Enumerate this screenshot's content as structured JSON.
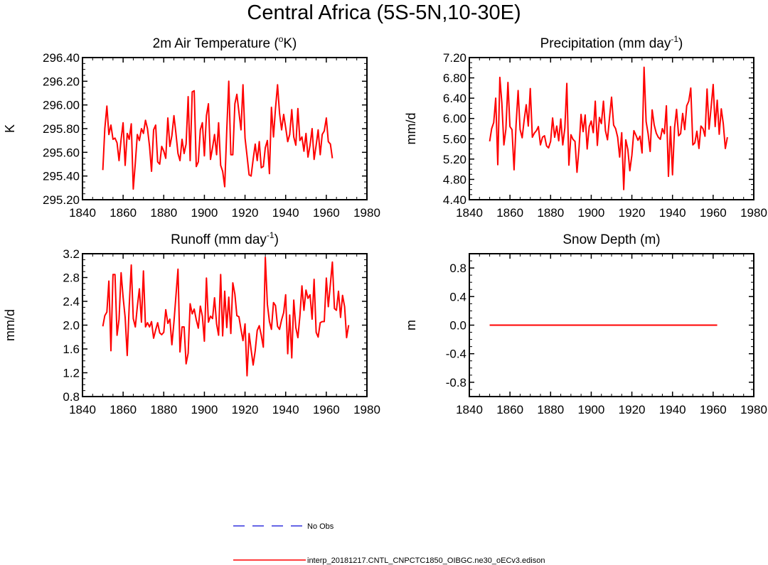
{
  "title": "Central Africa (5S-5N,10-30E)",
  "legend": [
    {
      "label": "No Obs",
      "color": "#3333dd",
      "dash": "dashed"
    },
    {
      "label": "interp_20181217.CNTL_CNPCTC1850_OIBGC.ne30_oECv3.edison",
      "color": "#ff0000",
      "dash": "solid"
    }
  ],
  "chart_data": [
    {
      "type": "line",
      "title": "2m Air Temperature (°K)",
      "title_base": "2m Air Temperature (",
      "title_sup": "o",
      "title_tail": "K)",
      "ylabel": "K",
      "xlim": [
        1840,
        1980
      ],
      "ylim": [
        295.2,
        296.4
      ],
      "xticks": [
        "1840",
        "1860",
        "1880",
        "1900",
        "1920",
        "1940",
        "1960",
        "1980"
      ],
      "yticks": [
        "295.20",
        "295.40",
        "295.60",
        "295.80",
        "296.00",
        "296.20",
        "296.40"
      ],
      "series": [
        {
          "name": "interp_20181217.CNTL_CNPCTC1850_OIBGC.ne30_oECv3.edison",
          "color": "#ff0000",
          "x_start": 1850,
          "values": [
            295.45,
            295.8,
            295.99,
            295.75,
            295.83,
            295.71,
            295.72,
            295.68,
            295.53,
            295.71,
            295.85,
            295.49,
            295.76,
            295.71,
            295.84,
            295.29,
            295.51,
            295.75,
            295.7,
            295.8,
            295.76,
            295.87,
            295.8,
            295.65,
            295.44,
            295.79,
            295.83,
            295.52,
            295.5,
            295.65,
            295.61,
            295.55,
            295.89,
            295.65,
            295.74,
            295.91,
            295.76,
            295.59,
            295.53,
            295.71,
            295.59,
            295.67,
            296.07,
            295.53,
            296.11,
            296.12,
            295.48,
            295.52,
            295.79,
            295.85,
            295.57,
            295.91,
            296.01,
            295.54,
            295.64,
            295.75,
            295.58,
            295.85,
            295.49,
            295.44,
            295.31,
            295.79,
            296.2,
            295.58,
            295.58,
            296.01,
            296.09,
            295.94,
            295.79,
            296.17,
            295.72,
            295.57,
            295.41,
            295.4,
            295.54,
            295.67,
            295.53,
            295.69,
            295.47,
            295.48,
            295.64,
            295.7,
            295.42,
            295.98,
            295.73,
            295.97,
            296.17,
            295.93,
            295.79,
            295.92,
            295.81,
            295.69,
            295.75,
            295.96,
            295.73,
            295.66,
            295.97,
            295.7,
            295.73,
            295.61,
            295.76,
            295.56,
            295.66,
            295.8,
            295.54,
            295.66,
            295.79,
            295.58,
            295.75,
            295.78,
            295.89,
            295.69,
            295.67,
            295.55
          ]
        }
      ]
    },
    {
      "type": "line",
      "title": "Precipitation (mm day-1)",
      "title_base": "Precipitation (mm day",
      "title_sup": "-1",
      "title_tail": ")",
      "ylabel": "mm/d",
      "xlim": [
        1840,
        1980
      ],
      "ylim": [
        4.4,
        7.2
      ],
      "xticks": [
        "1840",
        "1860",
        "1880",
        "1900",
        "1920",
        "1940",
        "1960",
        "1980"
      ],
      "yticks": [
        "4.40",
        "4.80",
        "5.20",
        "5.60",
        "6.00",
        "6.40",
        "6.80",
        "7.20"
      ],
      "series": [
        {
          "name": "interp_20181217.CNTL_CNPCTC1850_OIBGC.ne30_oECv3.edison",
          "color": "#ff0000",
          "x_start": 1850,
          "values": [
            5.55,
            5.8,
            5.92,
            6.4,
            5.09,
            6.81,
            6.31,
            5.48,
            5.79,
            6.71,
            5.84,
            5.78,
            4.99,
            5.87,
            6.55,
            5.78,
            5.62,
            5.97,
            6.27,
            5.85,
            6.59,
            5.63,
            5.71,
            5.76,
            5.84,
            5.48,
            5.63,
            5.66,
            5.46,
            5.42,
            5.55,
            6.01,
            5.63,
            5.85,
            5.56,
            5.99,
            5.48,
            5.81,
            6.69,
            5.08,
            5.68,
            5.59,
            5.55,
            4.94,
            5.43,
            6.08,
            5.74,
            6.07,
            5.4,
            5.84,
            5.95,
            5.72,
            6.34,
            5.47,
            6.02,
            5.9,
            6.34,
            5.76,
            5.58,
            6.01,
            6.42,
            5.87,
            5.8,
            5.63,
            5.24,
            5.72,
            4.6,
            5.58,
            5.39,
            4.97,
            5.28,
            5.76,
            5.67,
            5.57,
            5.65,
            5.32,
            7.01,
            5.94,
            5.7,
            5.35,
            6.17,
            5.87,
            5.71,
            5.63,
            5.59,
            5.8,
            5.7,
            6.25,
            4.86,
            5.84,
            4.89,
            5.82,
            6.18,
            5.66,
            5.7,
            6.1,
            5.78,
            6.25,
            6.34,
            6.6,
            5.48,
            5.52,
            5.75,
            5.41,
            5.85,
            5.8,
            5.65,
            6.58,
            5.79,
            6.22,
            6.67,
            5.84,
            6.36,
            5.69,
            6.19,
            5.9,
            5.41,
            5.63
          ]
        }
      ]
    },
    {
      "type": "line",
      "title": "Runoff (mm day-1)",
      "title_base": "Runoff (mm day",
      "title_sup": "-1",
      "title_tail": ")",
      "ylabel": "mm/d",
      "xlim": [
        1840,
        1980
      ],
      "ylim": [
        0.8,
        3.2
      ],
      "xticks": [
        "1840",
        "1860",
        "1880",
        "1900",
        "1920",
        "1940",
        "1960",
        "1980"
      ],
      "yticks": [
        "0.8",
        "1.2",
        "1.6",
        "2.0",
        "2.4",
        "2.8",
        "3.2"
      ],
      "series": [
        {
          "name": "interp_20181217.CNTL_CNPCTC1850_OIBGC.ne30_oECv3.edison",
          "color": "#ff0000",
          "x_start": 1850,
          "values": [
            1.98,
            2.16,
            2.22,
            2.74,
            1.57,
            2.85,
            2.85,
            1.83,
            2.1,
            2.88,
            2.47,
            2.13,
            1.49,
            2.32,
            3.01,
            2.11,
            1.97,
            2.31,
            2.61,
            2.05,
            2.91,
            1.97,
            2.04,
            1.97,
            2.06,
            1.78,
            1.92,
            2.04,
            1.87,
            1.84,
            1.88,
            2.26,
            2.03,
            2.1,
            1.67,
            2.05,
            2.49,
            2.94,
            1.55,
            1.97,
            1.97,
            1.35,
            1.53,
            2.36,
            2.19,
            2.27,
            2.09,
            1.95,
            2.32,
            2.15,
            1.73,
            2.79,
            2.05,
            2.15,
            2.11,
            2.46,
            2.02,
            1.83,
            2.85,
            1.82,
            2.57,
            1.96,
            2.47,
            1.86,
            2.71,
            2.52,
            2.16,
            2.14,
            1.93,
            1.74,
            2.02,
            1.15,
            1.86,
            1.59,
            1.33,
            1.57,
            1.91,
            1.99,
            1.83,
            1.63,
            3.14,
            2.35,
            2.06,
            1.93,
            2.38,
            2.33,
            1.98,
            1.93,
            2.09,
            2.21,
            2.51,
            1.52,
            2.17,
            1.45,
            2.42,
            1.96,
            1.79,
            2.15,
            2.66,
            2.25,
            2.59,
            2.45,
            2.51,
            2.1,
            2.77,
            1.88,
            1.8,
            2.04,
            2.06,
            2.06,
            2.79,
            2.31,
            2.69,
            3.06,
            2.28,
            2.25,
            2.57,
            2.13,
            2.5,
            2.31,
            1.79,
            2.0
          ]
        }
      ]
    },
    {
      "type": "line",
      "title": "Snow Depth (m)",
      "title_base": "Snow Depth (m)",
      "title_sup": "",
      "title_tail": "",
      "ylabel": "m",
      "xlim": [
        1840,
        1980
      ],
      "ylim": [
        -1.0,
        1.0
      ],
      "xticks": [
        "1840",
        "1860",
        "1880",
        "1900",
        "1920",
        "1940",
        "1960",
        "1980"
      ],
      "yticks": [
        "-0.8",
        "-0.4",
        "0.0",
        "0.4",
        "0.8"
      ],
      "series": [
        {
          "name": "interp_20181217.CNTL_CNPCTC1850_OIBGC.ne30_oECv3.edison",
          "color": "#ff0000",
          "x_start": 1850,
          "x_end": 1962,
          "constant": 0.0
        }
      ]
    }
  ]
}
